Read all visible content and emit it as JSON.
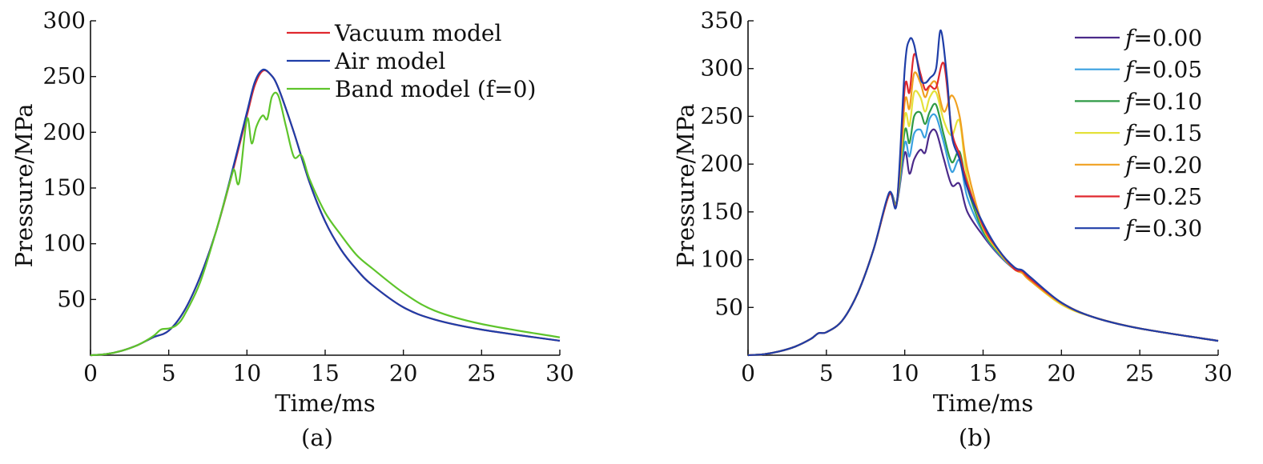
{
  "chart_data": [
    {
      "type": "line",
      "panel_label": "(a)",
      "xlabel": "Time/ms",
      "ylabel": "Pressure/MPa",
      "xlim": [
        0,
        30
      ],
      "ylim": [
        0,
        300
      ],
      "xticks": [
        0,
        5,
        10,
        15,
        20,
        25,
        30
      ],
      "yticks": [
        50,
        100,
        150,
        200,
        250,
        300
      ],
      "grid": false,
      "legend_position": "top-right",
      "series": [
        {
          "name": "Vacuum model",
          "color": "#e0282e",
          "x": [
            0,
            1,
            2,
            3,
            4,
            5,
            6,
            7,
            8,
            9,
            10,
            10.5,
            11,
            11.5,
            12,
            13,
            14,
            15,
            16,
            17,
            18,
            20,
            22,
            25,
            30
          ],
          "y": [
            0,
            1,
            4,
            9,
            16,
            22,
            40,
            70,
            110,
            160,
            215,
            242,
            255,
            252,
            240,
            200,
            155,
            120,
            95,
            77,
            63,
            43,
            32,
            23,
            13
          ]
        },
        {
          "name": "Air model",
          "color": "#1f3ea8",
          "x": [
            0,
            1,
            2,
            3,
            4,
            5,
            6,
            7,
            8,
            9,
            10,
            10.5,
            11,
            11.5,
            12,
            13,
            14,
            15,
            16,
            17,
            18,
            20,
            22,
            25,
            30
          ],
          "y": [
            0,
            1,
            4,
            9,
            16,
            22,
            40,
            70,
            110,
            162,
            218,
            245,
            256,
            252,
            240,
            200,
            155,
            120,
            95,
            77,
            63,
            43,
            32,
            23,
            13
          ]
        },
        {
          "name": "Band model (f=0)",
          "color": "#5ec42b",
          "x": [
            0,
            1,
            2,
            3,
            4,
            4.5,
            5,
            5.5,
            6,
            7,
            8,
            9,
            9.2,
            9.5,
            10,
            10.3,
            10.6,
            11,
            11.3,
            11.6,
            12,
            12.5,
            13,
            13.5,
            14,
            15,
            16,
            17,
            18,
            20,
            22,
            25,
            30
          ],
          "y": [
            0,
            1,
            4,
            9,
            17,
            23,
            24,
            27,
            36,
            65,
            110,
            160,
            166,
            155,
            212,
            190,
            205,
            215,
            212,
            232,
            233,
            205,
            178,
            179,
            158,
            128,
            108,
            90,
            78,
            56,
            40,
            28,
            16
          ]
        }
      ]
    },
    {
      "type": "line",
      "panel_label": "(b)",
      "xlabel": "Time/ms",
      "ylabel": "Pressure/MPa",
      "xlim": [
        0,
        30
      ],
      "ylim": [
        0,
        350
      ],
      "xticks": [
        0,
        5,
        10,
        15,
        20,
        25,
        30
      ],
      "yticks": [
        50,
        100,
        150,
        200,
        250,
        300,
        350
      ],
      "grid": false,
      "legend_position": "top-right",
      "series": [
        {
          "name": "f=0.00",
          "legend_var": "f",
          "legend_val": "=0.00",
          "color": "#4b2a8a",
          "x": [
            0,
            1,
            2,
            3,
            4,
            4.5,
            5,
            6,
            7,
            8,
            9,
            9.5,
            10,
            10.3,
            10.6,
            11,
            11.3,
            11.6,
            12,
            12.5,
            13,
            13.5,
            14,
            15,
            16,
            17,
            17.5,
            18,
            20,
            22,
            25,
            30
          ],
          "y": [
            0,
            1,
            4,
            9,
            17,
            23,
            24,
            36,
            65,
            110,
            168,
            160,
            212,
            190,
            205,
            215,
            212,
            232,
            234,
            205,
            178,
            179,
            150,
            125,
            105,
            90,
            87,
            80,
            55,
            40,
            28,
            15
          ]
        },
        {
          "name": "f=0.05",
          "legend_var": "f",
          "legend_val": "=0.05",
          "color": "#3aa0e0",
          "x": [
            0,
            1,
            2,
            3,
            4,
            4.5,
            5,
            6,
            7,
            8,
            9,
            9.5,
            10,
            10.3,
            10.6,
            11,
            11.3,
            11.6,
            12,
            12.5,
            13,
            13.5,
            14,
            15,
            16,
            17,
            17.5,
            18,
            20,
            22,
            25,
            30
          ],
          "y": [
            0,
            1,
            4,
            9,
            17,
            23,
            24,
            36,
            65,
            110,
            168,
            160,
            222,
            208,
            232,
            236,
            228,
            248,
            250,
            222,
            192,
            204,
            165,
            128,
            106,
            90,
            87,
            80,
            55,
            40,
            28,
            15
          ]
        },
        {
          "name": "f=0.10",
          "legend_var": "f",
          "legend_val": "=0.10",
          "color": "#2e9a45",
          "x": [
            0,
            1,
            2,
            3,
            4,
            4.5,
            5,
            6,
            7,
            8,
            9,
            9.5,
            10,
            10.3,
            10.6,
            11,
            11.3,
            11.6,
            12,
            12.5,
            13,
            13.5,
            14,
            15,
            16,
            17,
            17.5,
            18,
            20,
            22,
            25,
            30
          ],
          "y": [
            0,
            1,
            4,
            9,
            17,
            23,
            24,
            36,
            65,
            110,
            168,
            160,
            235,
            222,
            250,
            254,
            242,
            255,
            262,
            230,
            202,
            213,
            175,
            130,
            107,
            90,
            87,
            80,
            55,
            40,
            28,
            15
          ]
        },
        {
          "name": "f=0.15",
          "legend_var": "f",
          "legend_val": "=0.15",
          "color": "#e4e13a",
          "x": [
            0,
            1,
            2,
            3,
            4,
            4.5,
            5,
            6,
            7,
            8,
            9,
            9.5,
            10,
            10.3,
            10.6,
            11,
            11.3,
            11.6,
            12,
            12.5,
            13,
            13.5,
            14,
            15,
            16,
            17,
            17.5,
            18,
            20,
            22,
            25,
            30
          ],
          "y": [
            0,
            1,
            4,
            9,
            17,
            23,
            24,
            36,
            65,
            110,
            168,
            160,
            250,
            240,
            275,
            270,
            255,
            270,
            275,
            245,
            230,
            245,
            185,
            133,
            108,
            90,
            86,
            78,
            53,
            40,
            28,
            15
          ]
        },
        {
          "name": "f=0.20",
          "legend_var": "f",
          "legend_val": "=0.20",
          "color": "#f0a020",
          "x": [
            0,
            1,
            2,
            3,
            4,
            4.5,
            5,
            6,
            7,
            8,
            9,
            9.5,
            10,
            10.3,
            10.6,
            11,
            11.3,
            11.6,
            12,
            12.5,
            13,
            13.5,
            14,
            15,
            16,
            17,
            17.5,
            18,
            20,
            22,
            25,
            30
          ],
          "y": [
            0,
            1,
            4,
            9,
            17,
            23,
            24,
            36,
            65,
            110,
            168,
            160,
            265,
            258,
            295,
            285,
            270,
            282,
            285,
            255,
            272,
            250,
            195,
            135,
            109,
            90,
            86,
            78,
            54,
            40,
            28,
            15
          ]
        },
        {
          "name": "f=0.25",
          "legend_var": "f",
          "legend_val": "=0.25",
          "color": "#e0282e",
          "x": [
            0,
            1,
            2,
            3,
            4,
            4.5,
            5,
            6,
            7,
            8,
            9,
            9.5,
            10,
            10.3,
            10.6,
            11,
            11.3,
            11.6,
            12,
            12.5,
            13,
            13.5,
            14,
            15,
            16,
            17,
            17.5,
            18,
            20,
            22,
            25,
            30
          ],
          "y": [
            0,
            1,
            4,
            9,
            17,
            23,
            24,
            36,
            65,
            110,
            168,
            160,
            280,
            275,
            315,
            295,
            278,
            282,
            280,
            305,
            235,
            210,
            180,
            135,
            110,
            90,
            88,
            80,
            55,
            40,
            28,
            15
          ]
        },
        {
          "name": "f=0.30",
          "legend_var": "f",
          "legend_val": "=0.30",
          "color": "#1f3ea8",
          "x": [
            0,
            1,
            2,
            3,
            4,
            4.5,
            5,
            6,
            7,
            8,
            9,
            9.5,
            10,
            10.3,
            10.6,
            11,
            11.3,
            11.6,
            12,
            12.3,
            12.7,
            13,
            13.5,
            14,
            15,
            16,
            17,
            17.5,
            18,
            20,
            22,
            25,
            30
          ],
          "y": [
            0,
            1,
            4,
            9,
            17,
            23,
            24,
            36,
            65,
            110,
            170,
            160,
            300,
            330,
            325,
            290,
            285,
            290,
            300,
            340,
            290,
            230,
            205,
            175,
            138,
            110,
            92,
            89,
            82,
            55,
            40,
            28,
            15
          ]
        }
      ]
    }
  ]
}
